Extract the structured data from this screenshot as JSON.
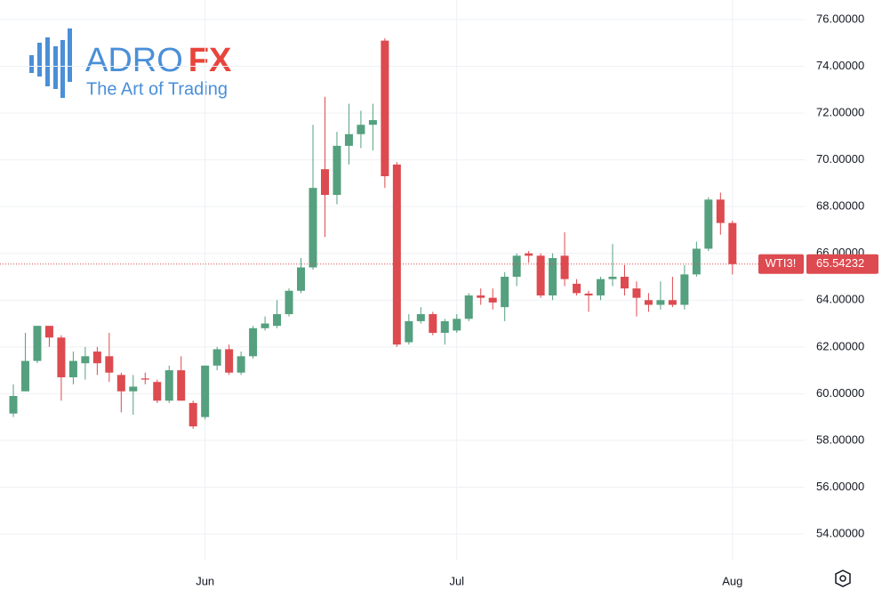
{
  "chart_data": {
    "type": "candlestick",
    "brand": {
      "name": "ADRO",
      "name_accent": "FX",
      "tagline": "The Art of Trading"
    },
    "symbol": "WTI3!",
    "categories": [
      null,
      null,
      null,
      null,
      null,
      null,
      null,
      null,
      null,
      null,
      null,
      null,
      null,
      null,
      null,
      null,
      "Jun",
      null,
      null,
      null,
      null,
      null,
      null,
      null,
      null,
      null,
      null,
      null,
      null,
      null,
      null,
      null,
      null,
      null,
      null,
      null,
      null,
      "Jul",
      null,
      null,
      null,
      null,
      null,
      null,
      null,
      null,
      null,
      null,
      null,
      null,
      null,
      null,
      null,
      null,
      null,
      null,
      null,
      null,
      null,
      null,
      "Aug"
    ],
    "open": [
      59.15,
      60.1,
      61.4,
      62.9,
      62.4,
      60.7,
      61.3,
      61.8,
      61.6,
      60.8,
      60.1,
      60.65,
      60.5,
      59.7,
      61.0,
      59.6,
      59.0,
      61.2,
      61.9,
      60.9,
      61.6,
      62.8,
      62.9,
      63.4,
      64.4,
      65.4,
      69.6,
      68.5,
      70.6,
      71.1,
      71.5,
      75.1,
      69.8,
      62.2,
      63.1,
      63.4,
      62.6,
      62.7,
      63.2,
      64.2,
      64.1,
      63.7,
      65.0,
      66.0,
      65.9,
      64.2,
      65.9,
      64.7,
      64.28,
      64.2,
      64.9,
      65.0,
      64.5,
      64.0,
      63.8,
      64.0,
      63.8,
      65.1,
      66.2,
      68.3,
      67.3
    ],
    "high": [
      60.4,
      62.6,
      62.9,
      62.9,
      62.5,
      61.8,
      62.0,
      62.0,
      62.6,
      60.9,
      60.8,
      60.9,
      60.6,
      61.2,
      61.6,
      59.7,
      61.2,
      62.0,
      62.1,
      61.8,
      62.9,
      63.3,
      64.0,
      64.5,
      65.8,
      71.5,
      72.7,
      71.2,
      72.4,
      72.1,
      72.4,
      75.2,
      69.9,
      63.4,
      63.7,
      63.5,
      63.2,
      63.4,
      64.3,
      64.5,
      64.5,
      65.2,
      66.0,
      66.1,
      66.0,
      66.0,
      66.9,
      64.9,
      64.4,
      65.0,
      66.4,
      65.5,
      64.8,
      64.3,
      64.8,
      65.0,
      65.5,
      66.5,
      68.4,
      68.6,
      67.4
    ],
    "low": [
      59.0,
      60.1,
      61.3,
      62.0,
      59.7,
      60.4,
      60.6,
      60.8,
      60.5,
      59.2,
      59.1,
      60.4,
      59.6,
      59.6,
      59.7,
      58.5,
      58.9,
      61.0,
      60.8,
      60.8,
      61.5,
      62.7,
      62.8,
      63.3,
      64.3,
      65.3,
      66.7,
      68.1,
      69.8,
      70.5,
      70.4,
      68.8,
      62.0,
      62.1,
      63.0,
      62.5,
      62.1,
      62.6,
      63.1,
      63.8,
      63.6,
      63.1,
      64.6,
      65.6,
      64.1,
      64.0,
      64.6,
      64.2,
      63.5,
      64.0,
      64.6,
      64.2,
      63.3,
      63.5,
      63.6,
      63.7,
      63.6,
      65.0,
      66.1,
      66.8,
      65.1
    ],
    "close": [
      59.9,
      61.4,
      62.9,
      62.4,
      60.7,
      61.4,
      61.6,
      61.3,
      60.9,
      60.1,
      60.3,
      60.6,
      59.7,
      61.0,
      59.7,
      58.6,
      61.2,
      61.9,
      60.9,
      61.6,
      62.8,
      63.0,
      63.4,
      64.4,
      65.4,
      68.8,
      68.5,
      70.6,
      71.1,
      71.5,
      71.7,
      69.3,
      62.1,
      63.1,
      63.4,
      62.6,
      63.1,
      63.2,
      64.2,
      64.1,
      63.9,
      65.0,
      65.9,
      65.9,
      64.2,
      65.8,
      64.9,
      64.3,
      64.2,
      64.9,
      65.0,
      64.5,
      64.1,
      63.8,
      64.0,
      63.8,
      65.1,
      66.2,
      68.3,
      67.3,
      65.54232
    ],
    "up_color": "#54a07f",
    "down_color": "#dd4a4f",
    "ylim": [
      53,
      77
    ],
    "yticks": [
      {
        "value": 54,
        "label": "54.00000"
      },
      {
        "value": 56,
        "label": "56.00000"
      },
      {
        "value": 58,
        "label": "58.00000"
      },
      {
        "value": 60,
        "label": "60.00000"
      },
      {
        "value": 62,
        "label": "62.00000"
      },
      {
        "value": 64,
        "label": "64.00000"
      },
      {
        "value": 66,
        "label": "66.00000"
      },
      {
        "value": 68,
        "label": "68.00000"
      },
      {
        "value": 70,
        "label": "70.00000"
      },
      {
        "value": 72,
        "label": "72.00000"
      },
      {
        "value": 74,
        "label": "74.00000"
      },
      {
        "value": 76,
        "label": "76.00000"
      }
    ],
    "grid": true
  }
}
